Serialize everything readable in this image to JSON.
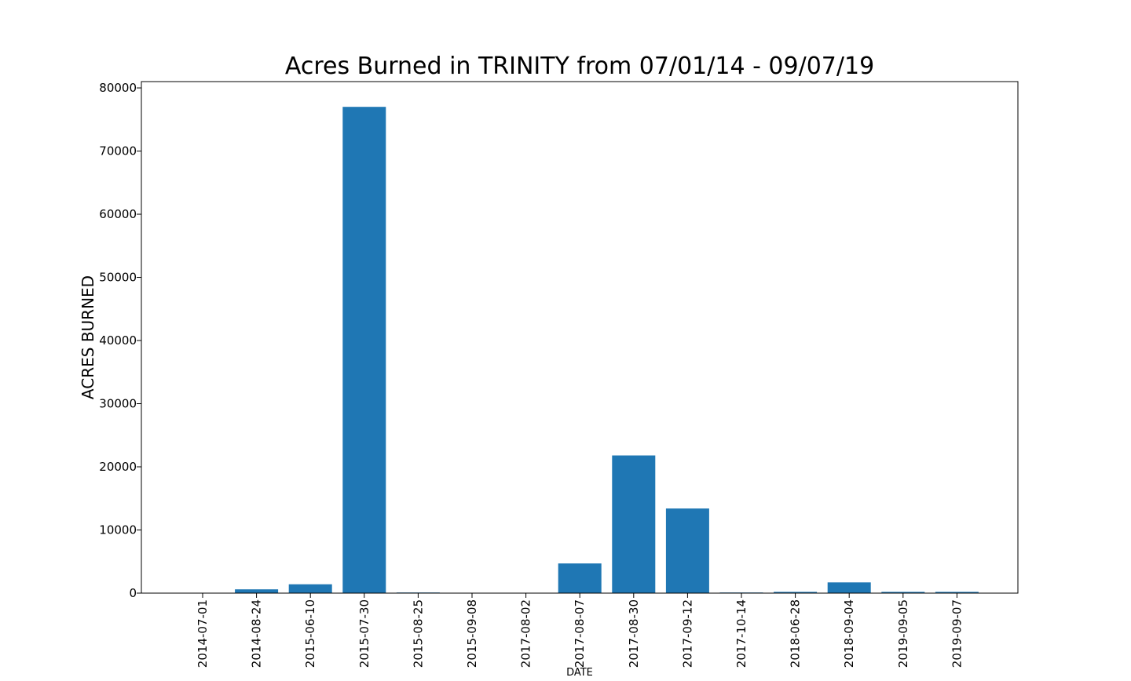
{
  "chart_data": {
    "type": "bar",
    "title": "Acres Burned in TRINITY from 07/01/14 - 09/07/19",
    "xlabel": "DATE",
    "ylabel": "ACRES BURNED",
    "categories": [
      "2014-07-01",
      "2014-08-24",
      "2015-06-10",
      "2015-07-30",
      "2015-08-25",
      "2015-09-08",
      "2017-08-02",
      "2017-08-07",
      "2017-08-30",
      "2017-09-12",
      "2017-10-14",
      "2018-06-28",
      "2018-09-04",
      "2019-09-05",
      "2019-09-07"
    ],
    "values": [
      0,
      600,
      1400,
      77000,
      100,
      0,
      0,
      4700,
      21800,
      13400,
      100,
      200,
      1700,
      200,
      200
    ],
    "ylim": [
      0,
      81000
    ],
    "yticks": [
      0,
      10000,
      20000,
      30000,
      40000,
      50000,
      60000,
      70000,
      80000
    ],
    "grid": false,
    "colors": {
      "bar": "#1f77b4",
      "axis": "#000000",
      "background": "#ffffff"
    }
  }
}
